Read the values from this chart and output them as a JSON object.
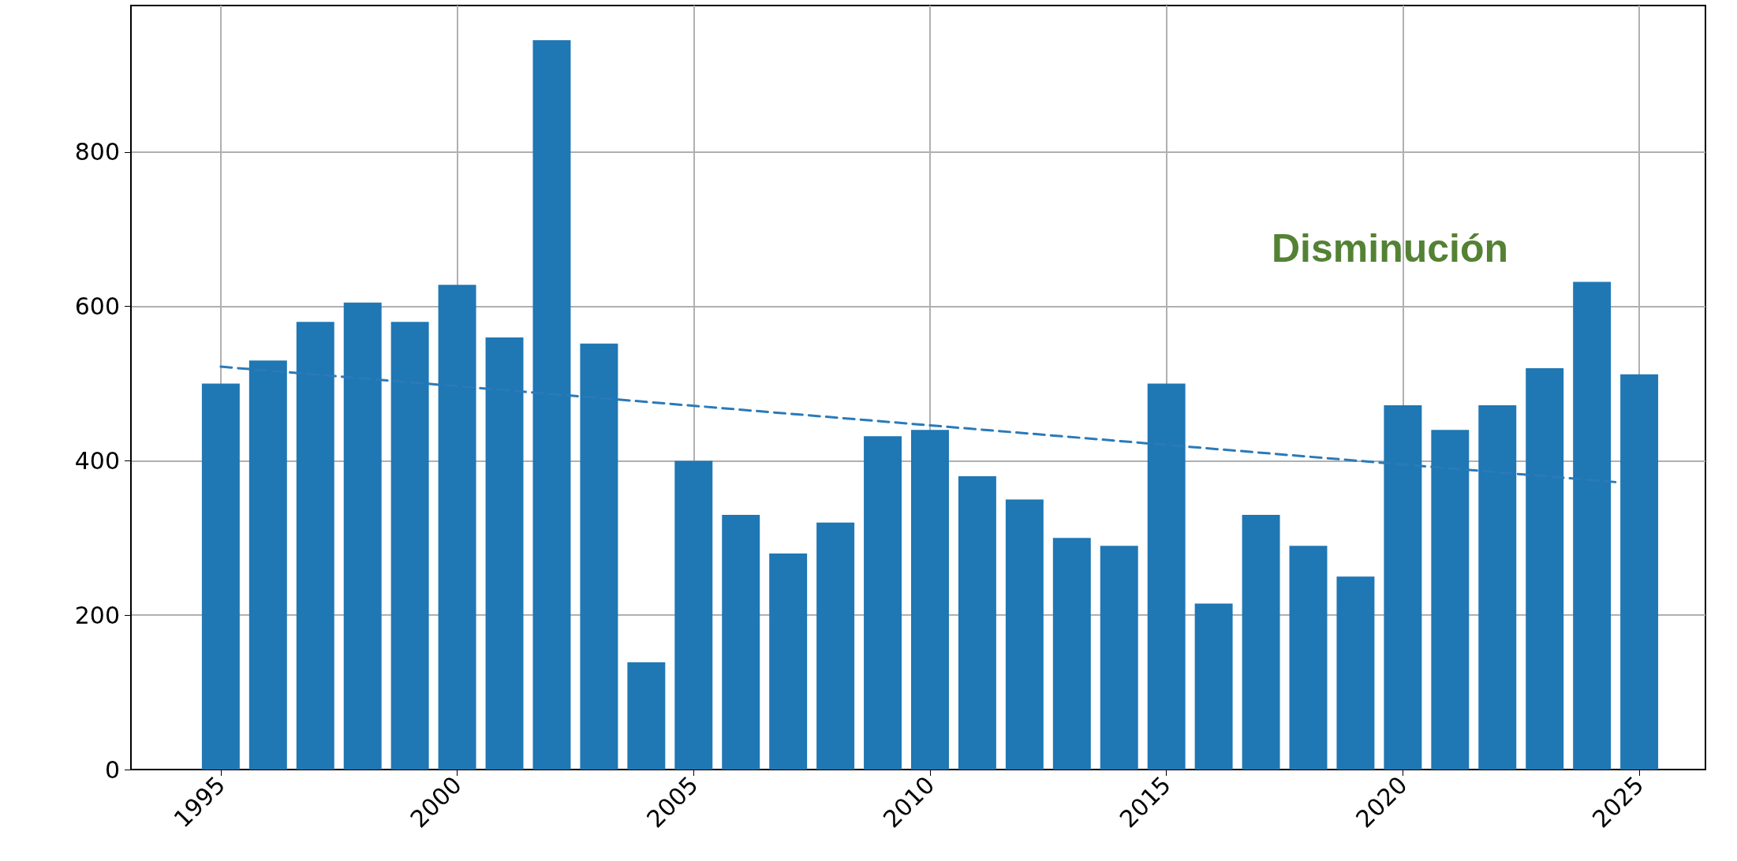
{
  "chart_data": {
    "type": "bar",
    "x": [
      1995,
      1996,
      1997,
      1998,
      1999,
      2000,
      2001,
      2002,
      2003,
      2004,
      2005,
      2006,
      2007,
      2008,
      2009,
      2010,
      2011,
      2012,
      2013,
      2014,
      2015,
      2016,
      2017,
      2018,
      2019,
      2020,
      2021,
      2022,
      2023,
      2024,
      2025
    ],
    "series": [
      {
        "color": "#1f77b4",
        "values": [
          500,
          530,
          580,
          605,
          580,
          628,
          560,
          945,
          552,
          139,
          400,
          330,
          280,
          320,
          432,
          440,
          380,
          350,
          300,
          290,
          500,
          215,
          330,
          290,
          250,
          472,
          440,
          472,
          520,
          632,
          512
        ]
      },
      {
        "type": "line",
        "color": "#2a7ab9",
        "line_style": "dashed",
        "marker": "none",
        "x": [
          1995,
          2024.6
        ],
        "values": [
          522,
          372
        ]
      }
    ],
    "xlim": [
      1993.1,
      2026.4
    ],
    "xticks": [
      1995,
      2000,
      2005,
      2010,
      2015,
      2020,
      2025
    ],
    "ylim": [
      0,
      990
    ],
    "yticks": [
      0,
      200,
      400,
      600,
      800
    ],
    "grid": true,
    "annotations": [
      "Disminución"
    ]
  }
}
